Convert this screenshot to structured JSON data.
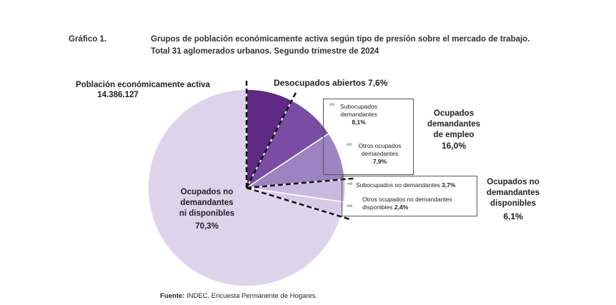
{
  "header": {
    "figure_label": "Gráfico 1.",
    "title_line1": "Grupos de población económicamente activa según tipo de presión sobre el mercado de trabajo.",
    "title_line2": "Total 31 aglomerados urbanos. Segundo trimestre de 2024"
  },
  "chart_data": {
    "type": "pie",
    "title": "Población económicamente activa",
    "total_label": "14.386.127",
    "slices": [
      {
        "name": "Desocupados abiertos",
        "value": 7.6,
        "color": "#5e2a84"
      },
      {
        "name": "Subocupados demandantes",
        "value": 8.1,
        "color": "#7a4ca3"
      },
      {
        "name": "Otros ocupados demandantes",
        "value": 7.9,
        "color": "#9d83c2"
      },
      {
        "name": "Subocupados no demandantes",
        "value": 3.7,
        "color": "#c9b9df"
      },
      {
        "name": "Otros ocupados no demandantes disponibles",
        "value": 2.4,
        "color": "#d6cae8"
      },
      {
        "name": "Ocupados no demandantes ni disponibles",
        "value": 70.3,
        "color": "#ddd4ec"
      }
    ],
    "groups": [
      {
        "name": "Ocupados demandantes de empleo",
        "value": 16.0
      },
      {
        "name": "Ocupados no demandantes disponibles",
        "value": 6.1
      }
    ]
  },
  "labels": {
    "pea_title": "Población económicamente activa",
    "pea_total": "14.386.127",
    "desocupados": "Desocupados abiertos",
    "desocupados_pct": "7,6%",
    "subocupados_dem_1": "Subocupados",
    "subocupados_dem_2": "demandantes",
    "subocupados_dem_pct": "8,1%",
    "otros_dem_1": "Otros ocupados",
    "otros_dem_2": "demandantes",
    "otros_dem_pct": "7,9%",
    "grp_dem_1": "Ocupados",
    "grp_dem_2": "demandantes",
    "grp_dem_3": "de empleo",
    "grp_dem_pct": "16,0%",
    "subocupados_nodem": "Subocupados no demandantes",
    "subocupados_nodem_pct": "3,7%",
    "otros_nodem_1": "Otros ocupados no demandantes",
    "otros_nodem_2": "disponibles",
    "otros_nodem_pct": "2,4%",
    "grp_nodem_1": "Ocupados no",
    "grp_nodem_2": "demandantes",
    "grp_nodem_3": "disponibles",
    "grp_nodem_pct": "6,1%",
    "big_1": "Ocupados no",
    "big_2": "demandantes",
    "big_3": "ni disponibles",
    "big_pct": "70,3%"
  },
  "source": {
    "label": "Fuente:",
    "text": "INDEC, Encuesta Permanente de Hogares."
  }
}
